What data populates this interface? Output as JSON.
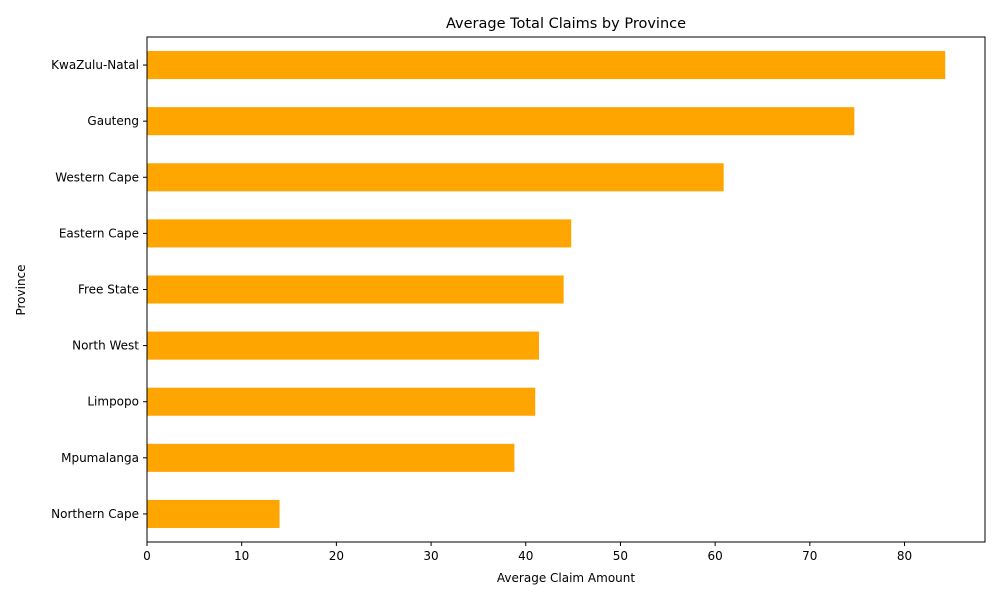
{
  "chart_data": {
    "type": "bar",
    "orientation": "horizontal",
    "title": "Average Total Claims by Province",
    "xlabel": "Average Claim Amount",
    "ylabel": "Province",
    "categories": [
      "Northern Cape",
      "Mpumalanga",
      "Limpopo",
      "North West",
      "Free State",
      "Eastern Cape",
      "Western Cape",
      "Gauteng",
      "KwaZulu-Natal"
    ],
    "values": [
      14.0,
      38.8,
      41.0,
      41.4,
      44.0,
      44.8,
      60.9,
      74.7,
      84.3
    ],
    "xlim": [
      0,
      88.5
    ],
    "xticks": [
      "0",
      "10",
      "20",
      "30",
      "40",
      "50",
      "60",
      "70",
      "80"
    ],
    "grid": false,
    "bar_color": "#ffa500"
  }
}
